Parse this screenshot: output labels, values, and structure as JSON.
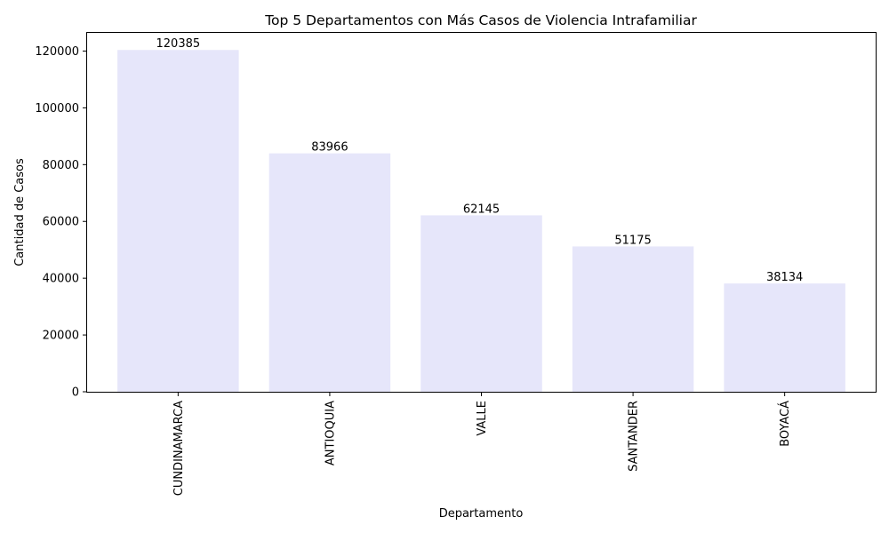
{
  "chart_data": {
    "type": "bar",
    "title": "Top 5 Departamentos con Más Casos de Violencia Intrafamiliar",
    "xlabel": "Departamento",
    "ylabel": "Cantidad de Casos",
    "categories": [
      "CUNDINAMARCA",
      "ANTIOQUIA",
      "VALLE",
      "SANTANDER",
      "BOYACÁ"
    ],
    "values": [
      120385,
      83966,
      62145,
      51175,
      38134
    ],
    "data_labels": [
      "120385",
      "83966",
      "62145",
      "51175",
      "38134"
    ],
    "ylim": [
      0,
      126404
    ],
    "yticks": [
      0,
      20000,
      40000,
      60000,
      80000,
      100000,
      120000
    ],
    "ytick_labels": [
      "0",
      "20000",
      "40000",
      "60000",
      "80000",
      "100000",
      "120000"
    ],
    "bar_color": "#e6e6fa",
    "grid": false,
    "legend": "none"
  }
}
